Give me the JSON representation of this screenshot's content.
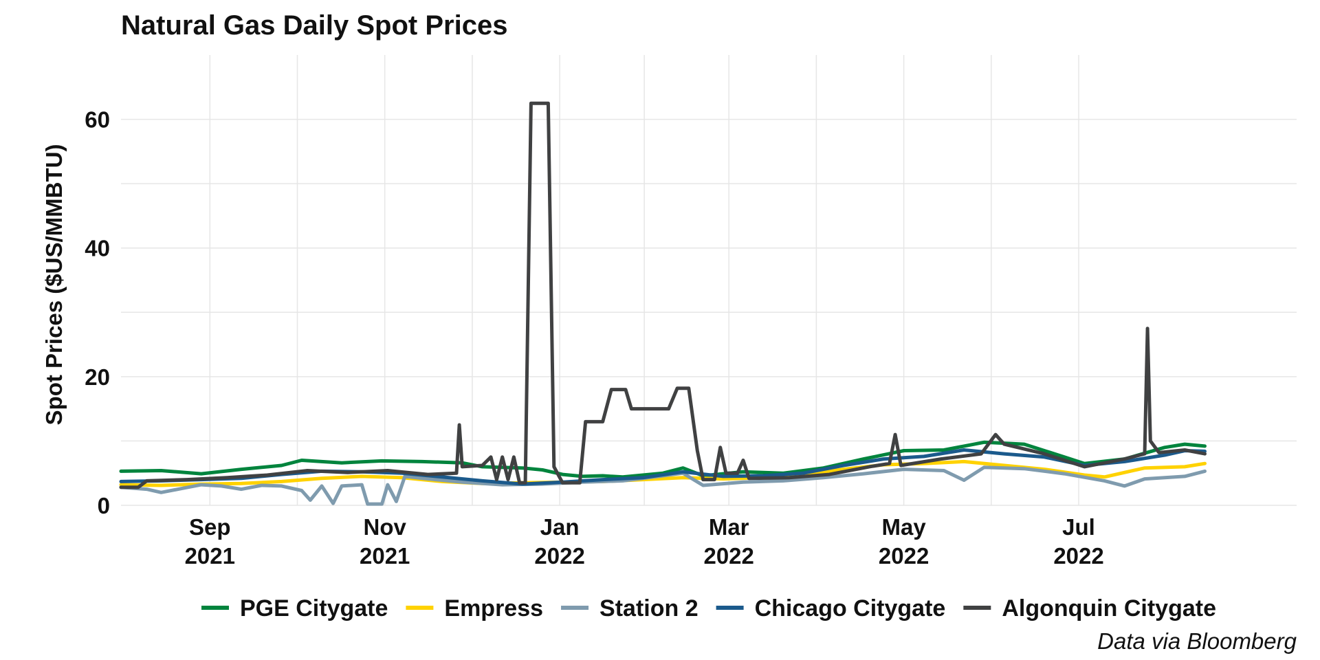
{
  "chart_data": {
    "type": "line",
    "title": "Natural Gas Daily Spot Prices",
    "ylabel": "Spot Prices ($US/MMBTU)",
    "xlabel": "",
    "caption": "Data via Bloomberg",
    "xlim": [
      "2021-08-01",
      "2022-09-15"
    ],
    "ylim": [
      0,
      70
    ],
    "yticks": [
      0,
      20,
      40,
      60
    ],
    "xticks": [
      {
        "date": "2021-09-01",
        "line1": "Sep",
        "line2": "2021"
      },
      {
        "date": "2021-11-01",
        "line1": "Nov",
        "line2": "2021"
      },
      {
        "date": "2022-01-01",
        "line1": "Jan",
        "line2": "2022"
      },
      {
        "date": "2022-03-01",
        "line1": "Mar",
        "line2": "2022"
      },
      {
        "date": "2022-05-01",
        "line1": "May",
        "line2": "2022"
      },
      {
        "date": "2022-07-01",
        "line1": "Jul",
        "line2": "2022"
      }
    ],
    "grid": true,
    "legend_position": "bottom",
    "series": [
      {
        "name": "PGE Citygate",
        "color": "#00843D",
        "points": [
          [
            "2021-08-01",
            5.3
          ],
          [
            "2021-08-15",
            5.4
          ],
          [
            "2021-08-29",
            4.9
          ],
          [
            "2021-09-12",
            5.6
          ],
          [
            "2021-09-26",
            6.2
          ],
          [
            "2021-10-03",
            7.0
          ],
          [
            "2021-10-17",
            6.6
          ],
          [
            "2021-10-31",
            6.9
          ],
          [
            "2021-11-14",
            6.8
          ],
          [
            "2021-11-28",
            6.6
          ],
          [
            "2021-12-05",
            6.0
          ],
          [
            "2021-12-19",
            5.8
          ],
          [
            "2021-12-26",
            5.5
          ],
          [
            "2022-01-02",
            4.8
          ],
          [
            "2022-01-09",
            4.5
          ],
          [
            "2022-01-16",
            4.6
          ],
          [
            "2022-01-23",
            4.4
          ],
          [
            "2022-02-06",
            5.0
          ],
          [
            "2022-02-13",
            5.8
          ],
          [
            "2022-02-20",
            4.6
          ],
          [
            "2022-03-06",
            5.2
          ],
          [
            "2022-03-20",
            5.0
          ],
          [
            "2022-04-03",
            5.8
          ],
          [
            "2022-04-17",
            7.2
          ],
          [
            "2022-05-01",
            8.5
          ],
          [
            "2022-05-15",
            8.6
          ],
          [
            "2022-05-29",
            9.8
          ],
          [
            "2022-06-12",
            9.5
          ],
          [
            "2022-06-26",
            7.5
          ],
          [
            "2022-07-03",
            6.5
          ],
          [
            "2022-07-17",
            7.2
          ],
          [
            "2022-07-31",
            9.0
          ],
          [
            "2022-08-07",
            9.5
          ],
          [
            "2022-08-14",
            9.2
          ]
        ]
      },
      {
        "name": "Empress",
        "color": "#FFD200",
        "points": [
          [
            "2021-08-01",
            3.2
          ],
          [
            "2021-08-15",
            3.1
          ],
          [
            "2021-08-29",
            3.3
          ],
          [
            "2021-09-12",
            3.4
          ],
          [
            "2021-09-26",
            3.7
          ],
          [
            "2021-10-10",
            4.2
          ],
          [
            "2021-10-24",
            4.5
          ],
          [
            "2021-11-07",
            4.3
          ],
          [
            "2021-11-21",
            3.7
          ],
          [
            "2021-12-05",
            3.4
          ],
          [
            "2021-12-19",
            3.5
          ],
          [
            "2022-01-02",
            3.6
          ],
          [
            "2022-01-16",
            3.7
          ],
          [
            "2022-01-30",
            4.0
          ],
          [
            "2022-02-13",
            4.3
          ],
          [
            "2022-02-27",
            4.1
          ],
          [
            "2022-03-13",
            4.3
          ],
          [
            "2022-03-27",
            4.8
          ],
          [
            "2022-04-10",
            5.6
          ],
          [
            "2022-04-24",
            6.3
          ],
          [
            "2022-05-08",
            6.5
          ],
          [
            "2022-05-22",
            6.8
          ],
          [
            "2022-06-05",
            6.2
          ],
          [
            "2022-06-19",
            5.6
          ],
          [
            "2022-07-03",
            4.7
          ],
          [
            "2022-07-10",
            4.4
          ],
          [
            "2022-07-24",
            5.8
          ],
          [
            "2022-08-07",
            6.0
          ],
          [
            "2022-08-14",
            6.5
          ]
        ]
      },
      {
        "name": "Station 2",
        "color": "#7F9BAE",
        "points": [
          [
            "2021-08-01",
            2.8
          ],
          [
            "2021-08-10",
            2.5
          ],
          [
            "2021-08-15",
            2.0
          ],
          [
            "2021-08-22",
            2.6
          ],
          [
            "2021-08-29",
            3.2
          ],
          [
            "2021-09-05",
            3.0
          ],
          [
            "2021-09-12",
            2.5
          ],
          [
            "2021-09-19",
            3.1
          ],
          [
            "2021-09-26",
            3.0
          ],
          [
            "2021-10-03",
            2.3
          ],
          [
            "2021-10-06",
            0.8
          ],
          [
            "2021-10-10",
            3.0
          ],
          [
            "2021-10-14",
            0.3
          ],
          [
            "2021-10-17",
            3.0
          ],
          [
            "2021-10-24",
            3.2
          ],
          [
            "2021-10-26",
            0.2
          ],
          [
            "2021-10-31",
            0.2
          ],
          [
            "2021-11-02",
            3.2
          ],
          [
            "2021-11-05",
            0.6
          ],
          [
            "2021-11-08",
            4.5
          ],
          [
            "2021-11-14",
            4.2
          ],
          [
            "2021-11-28",
            3.6
          ],
          [
            "2021-12-12",
            3.2
          ],
          [
            "2021-12-26",
            3.3
          ],
          [
            "2022-01-09",
            3.6
          ],
          [
            "2022-01-23",
            3.8
          ],
          [
            "2022-02-06",
            4.6
          ],
          [
            "2022-02-13",
            5.0
          ],
          [
            "2022-02-20",
            3.1
          ],
          [
            "2022-03-06",
            3.6
          ],
          [
            "2022-03-20",
            3.8
          ],
          [
            "2022-04-03",
            4.3
          ],
          [
            "2022-04-17",
            4.9
          ],
          [
            "2022-05-01",
            5.6
          ],
          [
            "2022-05-15",
            5.4
          ],
          [
            "2022-05-22",
            3.9
          ],
          [
            "2022-05-29",
            5.9
          ],
          [
            "2022-06-12",
            5.7
          ],
          [
            "2022-06-26",
            4.9
          ],
          [
            "2022-07-10",
            3.8
          ],
          [
            "2022-07-17",
            3.0
          ],
          [
            "2022-07-24",
            4.1
          ],
          [
            "2022-08-07",
            4.5
          ],
          [
            "2022-08-14",
            5.3
          ]
        ]
      },
      {
        "name": "Chicago Citygate",
        "color": "#1B5A8C",
        "points": [
          [
            "2021-08-01",
            3.7
          ],
          [
            "2021-08-15",
            3.8
          ],
          [
            "2021-08-29",
            4.0
          ],
          [
            "2021-09-12",
            4.2
          ],
          [
            "2021-09-26",
            4.8
          ],
          [
            "2021-10-10",
            5.3
          ],
          [
            "2021-10-24",
            5.2
          ],
          [
            "2021-11-07",
            5.0
          ],
          [
            "2021-11-21",
            4.4
          ],
          [
            "2021-12-05",
            3.8
          ],
          [
            "2021-12-19",
            3.3
          ],
          [
            "2022-01-02",
            3.6
          ],
          [
            "2022-01-16",
            4.0
          ],
          [
            "2022-01-30",
            4.3
          ],
          [
            "2022-02-13",
            5.2
          ],
          [
            "2022-02-27",
            4.5
          ],
          [
            "2022-03-13",
            4.6
          ],
          [
            "2022-03-27",
            5.0
          ],
          [
            "2022-04-10",
            6.2
          ],
          [
            "2022-04-24",
            7.2
          ],
          [
            "2022-05-08",
            7.6
          ],
          [
            "2022-05-22",
            8.6
          ],
          [
            "2022-06-05",
            8.0
          ],
          [
            "2022-06-19",
            7.5
          ],
          [
            "2022-07-03",
            6.2
          ],
          [
            "2022-07-17",
            6.8
          ],
          [
            "2022-07-31",
            7.8
          ],
          [
            "2022-08-07",
            8.5
          ],
          [
            "2022-08-14",
            8.4
          ]
        ]
      },
      {
        "name": "Algonquin Citygate",
        "color": "#404142",
        "points": [
          [
            "2021-08-01",
            2.8
          ],
          [
            "2021-08-07",
            2.8
          ],
          [
            "2021-08-10",
            3.8
          ],
          [
            "2021-08-24",
            4.0
          ],
          [
            "2021-09-07",
            4.3
          ],
          [
            "2021-09-21",
            4.7
          ],
          [
            "2021-10-05",
            5.4
          ],
          [
            "2021-10-19",
            5.1
          ],
          [
            "2021-11-02",
            5.4
          ],
          [
            "2021-11-16",
            4.8
          ],
          [
            "2021-11-26",
            5.0
          ],
          [
            "2021-11-27",
            12.5
          ],
          [
            "2021-11-28",
            6.0
          ],
          [
            "2021-12-05",
            6.2
          ],
          [
            "2021-12-08",
            7.5
          ],
          [
            "2021-12-10",
            4.0
          ],
          [
            "2021-12-12",
            7.5
          ],
          [
            "2021-12-14",
            4.0
          ],
          [
            "2021-12-16",
            7.5
          ],
          [
            "2021-12-18",
            3.5
          ],
          [
            "2021-12-20",
            3.5
          ],
          [
            "2021-12-22",
            62.5
          ],
          [
            "2021-12-28",
            62.5
          ],
          [
            "2021-12-30",
            6.0
          ],
          [
            "2022-01-02",
            3.5
          ],
          [
            "2022-01-08",
            3.5
          ],
          [
            "2022-01-10",
            13.0
          ],
          [
            "2022-01-16",
            13.0
          ],
          [
            "2022-01-19",
            18.0
          ],
          [
            "2022-01-24",
            18.0
          ],
          [
            "2022-01-26",
            15.0
          ],
          [
            "2022-02-08",
            15.0
          ],
          [
            "2022-02-11",
            18.2
          ],
          [
            "2022-02-15",
            18.2
          ],
          [
            "2022-02-18",
            8.5
          ],
          [
            "2022-02-20",
            4.0
          ],
          [
            "2022-02-24",
            4.0
          ],
          [
            "2022-02-26",
            9.0
          ],
          [
            "2022-02-28",
            5.0
          ],
          [
            "2022-03-04",
            5.0
          ],
          [
            "2022-03-06",
            7.0
          ],
          [
            "2022-03-08",
            4.2
          ],
          [
            "2022-03-22",
            4.3
          ],
          [
            "2022-04-05",
            4.8
          ],
          [
            "2022-04-19",
            6.0
          ],
          [
            "2022-04-26",
            6.5
          ],
          [
            "2022-04-28",
            11.0
          ],
          [
            "2022-04-30",
            6.2
          ],
          [
            "2022-05-14",
            7.2
          ],
          [
            "2022-05-28",
            8.0
          ],
          [
            "2022-06-02",
            11.0
          ],
          [
            "2022-06-05",
            9.5
          ],
          [
            "2022-06-19",
            8.0
          ],
          [
            "2022-07-03",
            6.0
          ],
          [
            "2022-07-17",
            7.2
          ],
          [
            "2022-07-24",
            8.0
          ],
          [
            "2022-07-25",
            27.5
          ],
          [
            "2022-07-26",
            10.0
          ],
          [
            "2022-07-29",
            8.2
          ],
          [
            "2022-08-07",
            8.6
          ],
          [
            "2022-08-14",
            8.0
          ]
        ]
      }
    ]
  }
}
